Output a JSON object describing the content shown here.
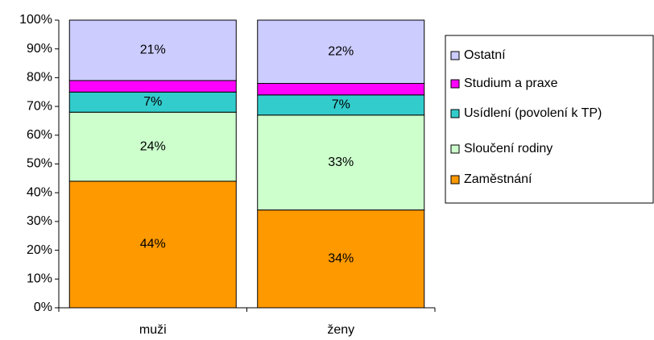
{
  "chart_data": {
    "type": "stacked_bar",
    "categories": [
      "muži",
      "ženy"
    ],
    "series": [
      {
        "name": "Zaměstnání",
        "color": "#ff9900",
        "values": [
          44,
          34
        ],
        "value_labels": [
          "44%",
          "34%"
        ]
      },
      {
        "name": "Sloučení rodiny",
        "color": "#ccffcc",
        "values": [
          24,
          33
        ],
        "value_labels": [
          "24%",
          "33%"
        ]
      },
      {
        "name": "Usídlení (povolení k TP)",
        "color": "#33cccc",
        "values": [
          7,
          7
        ],
        "value_labels": [
          "7%",
          "7%"
        ]
      },
      {
        "name": "Studium a praxe",
        "color": "#ff00ff",
        "values": [
          4,
          4
        ]
      },
      {
        "name": "Ostatní",
        "color": "#ccccff",
        "values": [
          21,
          22
        ],
        "value_labels": [
          "21%",
          "22%"
        ]
      }
    ],
    "ylim": [
      0,
      100
    ],
    "yticks": [
      {
        "value": 0,
        "label": "0%"
      },
      {
        "value": 10,
        "label": "10%"
      },
      {
        "value": 20,
        "label": "20%"
      },
      {
        "value": 30,
        "label": "30%"
      },
      {
        "value": 40,
        "label": "40%"
      },
      {
        "value": 50,
        "label": "50%"
      },
      {
        "value": 60,
        "label": "60%"
      },
      {
        "value": 70,
        "label": "70%"
      },
      {
        "value": 80,
        "label": "80%"
      },
      {
        "value": 90,
        "label": "90%"
      },
      {
        "value": 100,
        "label": "100%"
      }
    ],
    "legend": "right"
  }
}
